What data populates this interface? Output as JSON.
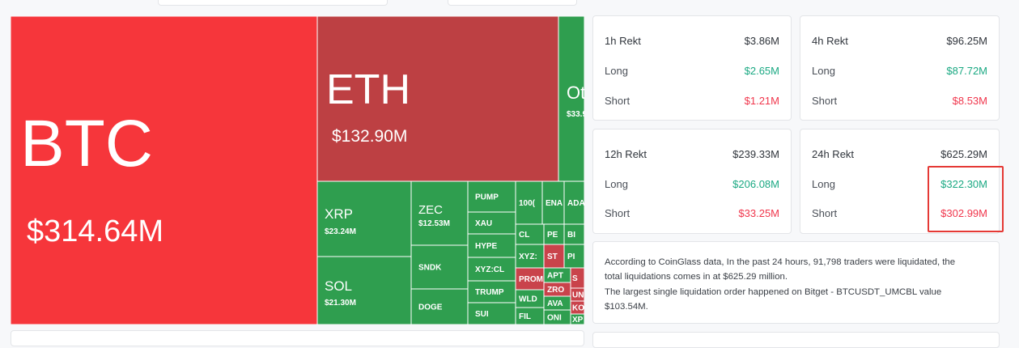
{
  "treemap": {
    "tiles": [
      {
        "name": "BTC",
        "value": "$314.64M"
      },
      {
        "name": "ETH",
        "value": "$132.90M"
      },
      {
        "name": "Ot",
        "value": "$33.9"
      },
      {
        "name": "XRP",
        "value": "$23.24M"
      },
      {
        "name": "SOL",
        "value": "$21.30M"
      },
      {
        "name": "ZEC",
        "value": "$12.53M"
      },
      {
        "name": "SNDK"
      },
      {
        "name": "DOGE"
      },
      {
        "name": "PUMP"
      },
      {
        "name": "XAU"
      },
      {
        "name": "HYPE"
      },
      {
        "name": "XYZ:CL"
      },
      {
        "name": "TRUMP"
      },
      {
        "name": "SUI"
      },
      {
        "name": "100("
      },
      {
        "name": "ENA"
      },
      {
        "name": "ADA"
      },
      {
        "name": "CL"
      },
      {
        "name": "XYZ:"
      },
      {
        "name": "PROM"
      },
      {
        "name": "WLD"
      },
      {
        "name": "FIL"
      },
      {
        "name": "PE"
      },
      {
        "name": "BI"
      },
      {
        "name": "ST"
      },
      {
        "name": "PI"
      },
      {
        "name": "APT"
      },
      {
        "name": "S"
      },
      {
        "name": "ZRO"
      },
      {
        "name": "UN"
      },
      {
        "name": "AVA"
      },
      {
        "name": "KO"
      },
      {
        "name": "ONI"
      },
      {
        "name": "XP"
      }
    ]
  },
  "cards": [
    {
      "title": "1h Rekt",
      "total": "$3.86M",
      "long_label": "Long",
      "long": "$2.65M",
      "short_label": "Short",
      "short": "$1.21M"
    },
    {
      "title": "4h Rekt",
      "total": "$96.25M",
      "long_label": "Long",
      "long": "$87.72M",
      "short_label": "Short",
      "short": "$8.53M"
    },
    {
      "title": "12h Rekt",
      "total": "$239.33M",
      "long_label": "Long",
      "long": "$206.08M",
      "short_label": "Short",
      "short": "$33.25M"
    },
    {
      "title": "24h Rekt",
      "total": "$625.29M",
      "long_label": "Long",
      "long": "$322.30M",
      "short_label": "Short",
      "short": "$302.99M"
    }
  ],
  "note": {
    "lines": [
      "According to CoinGlass data, In the past 24 hours, 91,798 traders were liquidated, the",
      "total liquidations comes in at $625.29 million.",
      "The largest single liquidation order happened on Bitget - BTCUSDT_UMCBL value",
      "$103.54M."
    ]
  }
}
